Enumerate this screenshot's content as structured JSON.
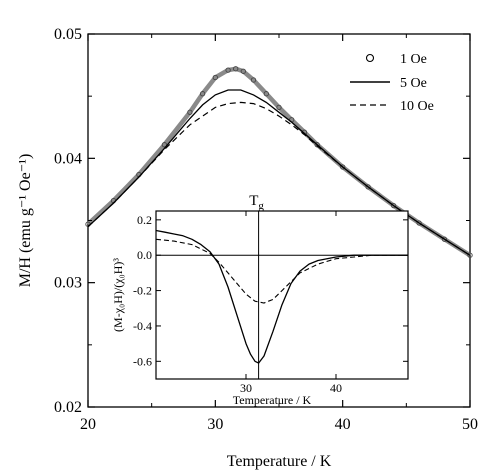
{
  "chart_data": [
    {
      "type": "line",
      "xlabel": "Temperature / K",
      "ylabel": "M/H (emu g⁻¹ Oe⁻¹)",
      "xlim": [
        20,
        50
      ],
      "ylim": [
        0.02,
        0.05
      ],
      "x_ticks": [
        "20",
        "30",
        "40",
        "50"
      ],
      "y_ticks": [
        "0.02",
        "0.03",
        "0.04",
        "0.05"
      ],
      "legend": {
        "placement": "top-right"
      },
      "series": [
        {
          "name": "1 Oe",
          "marker": "circle",
          "style": "markers",
          "x": [
            20,
            22,
            24,
            26,
            28,
            29,
            30,
            31,
            31.6,
            32.2,
            33,
            34,
            35,
            36,
            37,
            38,
            40,
            42,
            44,
            46,
            48,
            50
          ],
          "y": [
            0.0347,
            0.0366,
            0.0387,
            0.0411,
            0.0437,
            0.0452,
            0.0465,
            0.0471,
            0.0472,
            0.047,
            0.0463,
            0.0452,
            0.0441,
            0.0431,
            0.0421,
            0.0411,
            0.0393,
            0.0377,
            0.0362,
            0.0348,
            0.0335,
            0.0322
          ]
        },
        {
          "name": "5 Oe",
          "style": "solid",
          "x": [
            20,
            22,
            24,
            26,
            28,
            29,
            30,
            31,
            32,
            33,
            34,
            35,
            36,
            37,
            38,
            40,
            42,
            44,
            46,
            48,
            50
          ],
          "y": [
            0.0345,
            0.0364,
            0.0385,
            0.0408,
            0.0432,
            0.0443,
            0.0451,
            0.0455,
            0.0455,
            0.0451,
            0.0445,
            0.0437,
            0.0429,
            0.042,
            0.0411,
            0.0393,
            0.0377,
            0.0362,
            0.0348,
            0.0335,
            0.0322
          ]
        },
        {
          "name": "10 Oe",
          "style": "dashed",
          "x": [
            20,
            22,
            24,
            26,
            28,
            30,
            31,
            32,
            33,
            34,
            35,
            36,
            37,
            38,
            40,
            42,
            44,
            46,
            48,
            50
          ],
          "y": [
            0.0345,
            0.0364,
            0.0385,
            0.0407,
            0.0427,
            0.0441,
            0.0444,
            0.0445,
            0.0444,
            0.044,
            0.0434,
            0.0427,
            0.0419,
            0.041,
            0.0393,
            0.0377,
            0.0362,
            0.0348,
            0.0335,
            0.0322
          ]
        }
      ]
    },
    {
      "type": "line",
      "title": "T_g",
      "xlabel": "Temperature / K",
      "ylabel": "(M-χ₀H)/(χ₀H)³",
      "xlim": [
        20,
        48
      ],
      "ylim": [
        -0.7,
        0.25
      ],
      "x_ticks": [
        "30",
        "40"
      ],
      "y_ticks": [
        "0.2",
        "0.0",
        "-0.2",
        "-0.4",
        "-0.6"
      ],
      "reference_lines": {
        "vertical_x": 31.4,
        "horizontal_y": 0.0
      },
      "series": [
        {
          "style": "solid",
          "x": [
            20,
            21,
            22,
            23,
            24,
            25,
            26,
            27,
            28,
            29,
            30,
            30.5,
            31,
            31.4,
            32,
            33,
            34,
            35,
            36,
            37,
            38,
            40,
            42,
            44,
            46,
            48
          ],
          "y": [
            0.14,
            0.13,
            0.12,
            0.11,
            0.09,
            0.06,
            0.02,
            -0.05,
            -0.18,
            -0.34,
            -0.5,
            -0.56,
            -0.6,
            -0.61,
            -0.57,
            -0.43,
            -0.28,
            -0.16,
            -0.09,
            -0.05,
            -0.03,
            -0.01,
            0.0,
            0.0,
            0.0,
            0.0
          ]
        },
        {
          "style": "dashed",
          "x": [
            20,
            22,
            24,
            26,
            27,
            28,
            29,
            30,
            31,
            32,
            33,
            34,
            35,
            36,
            38,
            40,
            42,
            44,
            46,
            48
          ],
          "y": [
            0.09,
            0.08,
            0.06,
            0.01,
            -0.04,
            -0.1,
            -0.16,
            -0.22,
            -0.26,
            -0.27,
            -0.25,
            -0.2,
            -0.15,
            -0.1,
            -0.05,
            -0.02,
            -0.01,
            0.0,
            0.0,
            0.0
          ]
        }
      ]
    }
  ]
}
